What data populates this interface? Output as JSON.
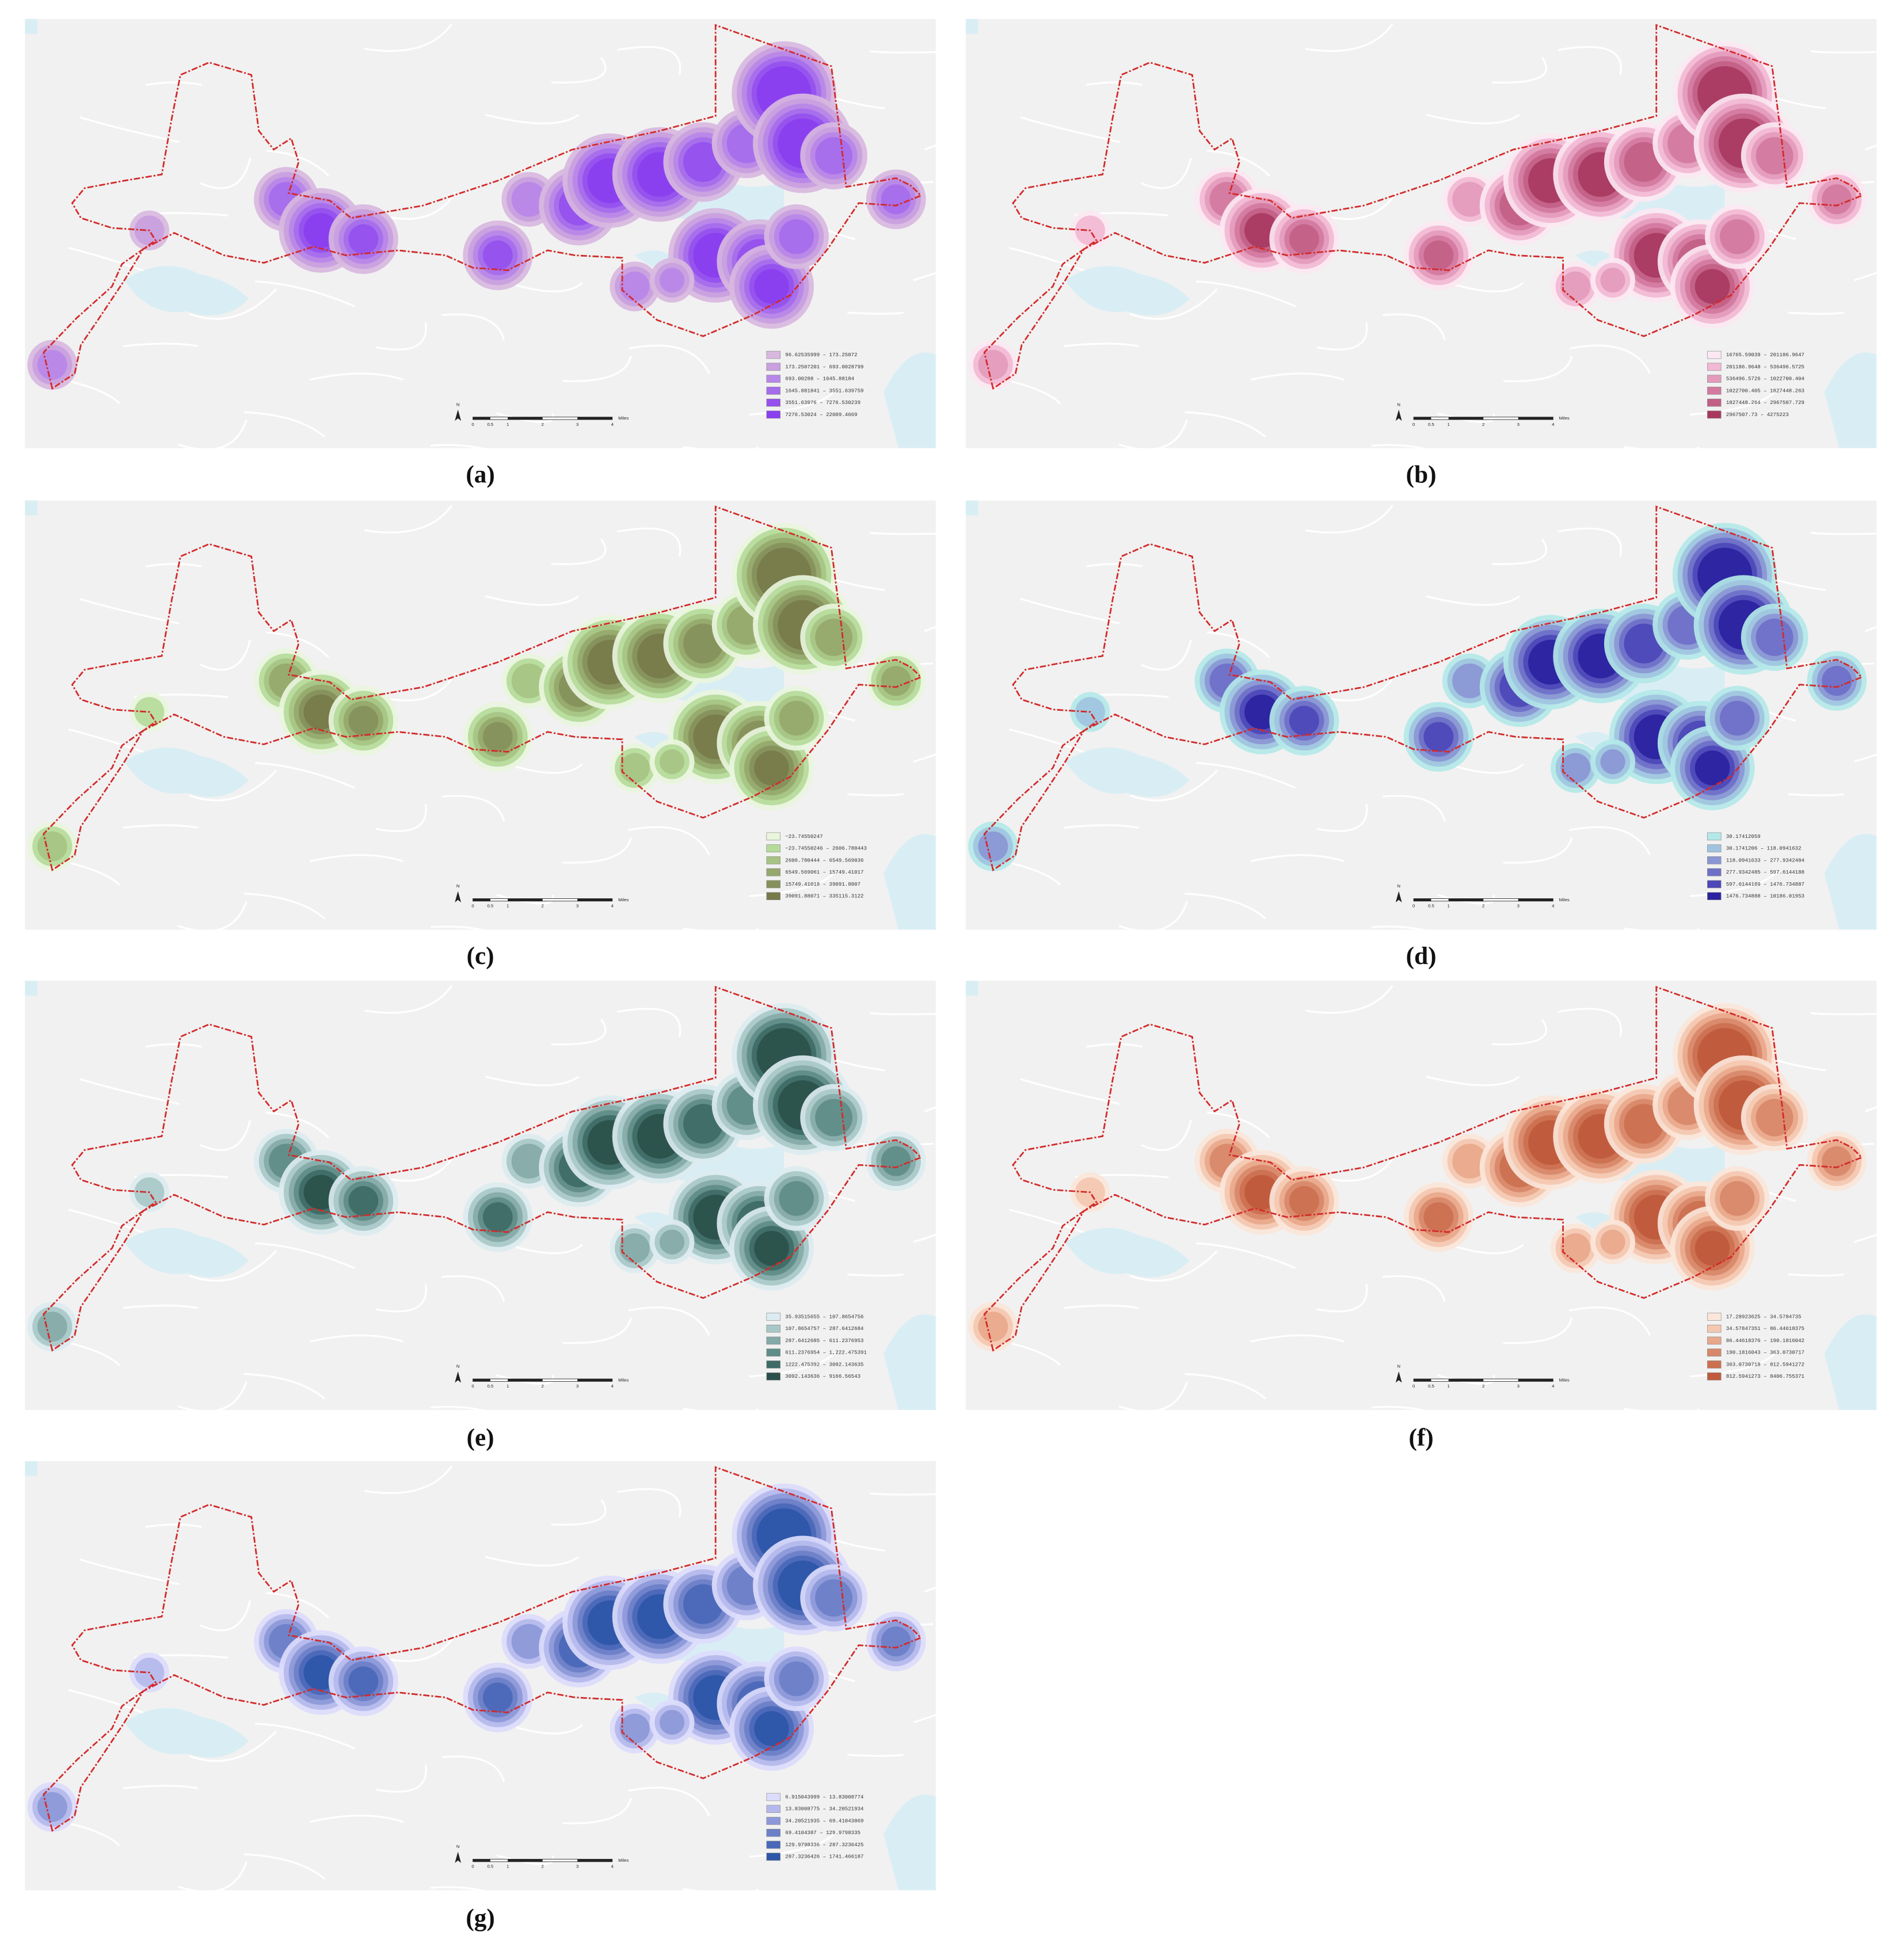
{
  "panels": [
    {
      "label": "(a)",
      "colors": [
        "#d8b8e0",
        "#c9a0e0",
        "#b887e8",
        "#a56cec",
        "#9550ee",
        "#8a3ff0"
      ],
      "legend": [
        "96.62535999 – 173.25072",
        "173.2507201 – 693.0028799",
        "693.00288 – 1645.88184",
        "1645.881841 – 3551.639759",
        "3551.63976 – 7276.530239",
        "7276.53024 – 22089.4669"
      ]
    },
    {
      "label": "(b)",
      "colors": [
        "#fce8f2",
        "#f2b8d4",
        "#e49bbb",
        "#d47aa0",
        "#c25f86",
        "#a8385f"
      ],
      "legend": [
        "16765.59039 – 201186.9647",
        "201186.9648 – 536496.5725",
        "536496.5726 – 1022700.404",
        "1022700.405 – 1827448.263",
        "1827448.264 – 2967507.729",
        "2967507.73 – 4275223"
      ]
    },
    {
      "label": "(c)",
      "colors": [
        "#e9f5dd",
        "#b5da9a",
        "#a6c383",
        "#96a86d",
        "#86905b",
        "#77794a"
      ],
      "legend": [
        "−23.74550247",
        "−23.74550246 – 2606.780443",
        "2606.780444 – 6549.569036",
        "6549.569061 – 15749.41017",
        "15749.41018 – 39091.8807",
        "39091.88071 – 335115.3122"
      ]
    },
    {
      "label": "(d)",
      "colors": [
        "#b4e8e8",
        "#a0c4e0",
        "#8a96d4",
        "#6e70c8",
        "#4c48b8",
        "#2a22a0"
      ],
      "legend": [
        "30.17412059",
        "30.1741206 – 118.0941632",
        "118.0941633 – 277.9342484",
        "277.9342485 – 597.6144188",
        "597.6144189 – 1476.734887",
        "1476.734888 – 10186.01953"
      ]
    },
    {
      "label": "(e)",
      "colors": [
        "#dcecf0",
        "#a8c8c8",
        "#84aaa8",
        "#5f8c88",
        "#3e6b66",
        "#2b504b"
      ],
      "legend": [
        "35.93515655 – 107.8654756",
        "107.8654757 – 287.6412684",
        "287.6412685 – 611.2376953",
        "611.2376954 – 1,222.475391",
        "1222.475392 – 3092.143635",
        "3092.143636 – 9166.56543"
      ]
    },
    {
      "label": "(f)",
      "colors": [
        "#fbe6da",
        "#f4c8b0",
        "#e8a88c",
        "#d8886a",
        "#cc7050",
        "#bf5a3c"
      ],
      "legend": [
        "17.28923625 – 34.5784735",
        "34.57847351 – 86.44618375",
        "86.44618376 – 190.1816042",
        "190.1816043 – 363.0730717",
        "363.0730718 – 812.5941272",
        "812.5941273 – 8406.755371"
      ]
    },
    {
      "label": "(g)",
      "colors": [
        "#dcdcfc",
        "#b4b8ec",
        "#8c98d8",
        "#6c80c8",
        "#4a68b8",
        "#2d56a8"
      ],
      "legend": [
        "6.915043999 – 13.83008774",
        "13.83008775 – 34.20521934",
        "34.20521935 – 69.41043869",
        "69.4104387 – 129.9798335",
        "129.9798336 – 287.3236425",
        "287.3236426 – 1741.466187"
      ]
    }
  ],
  "scale_bar": {
    "north": "N",
    "ticks": [
      0,
      0.5,
      1,
      2,
      3,
      4
    ],
    "unit": "Miles"
  }
}
